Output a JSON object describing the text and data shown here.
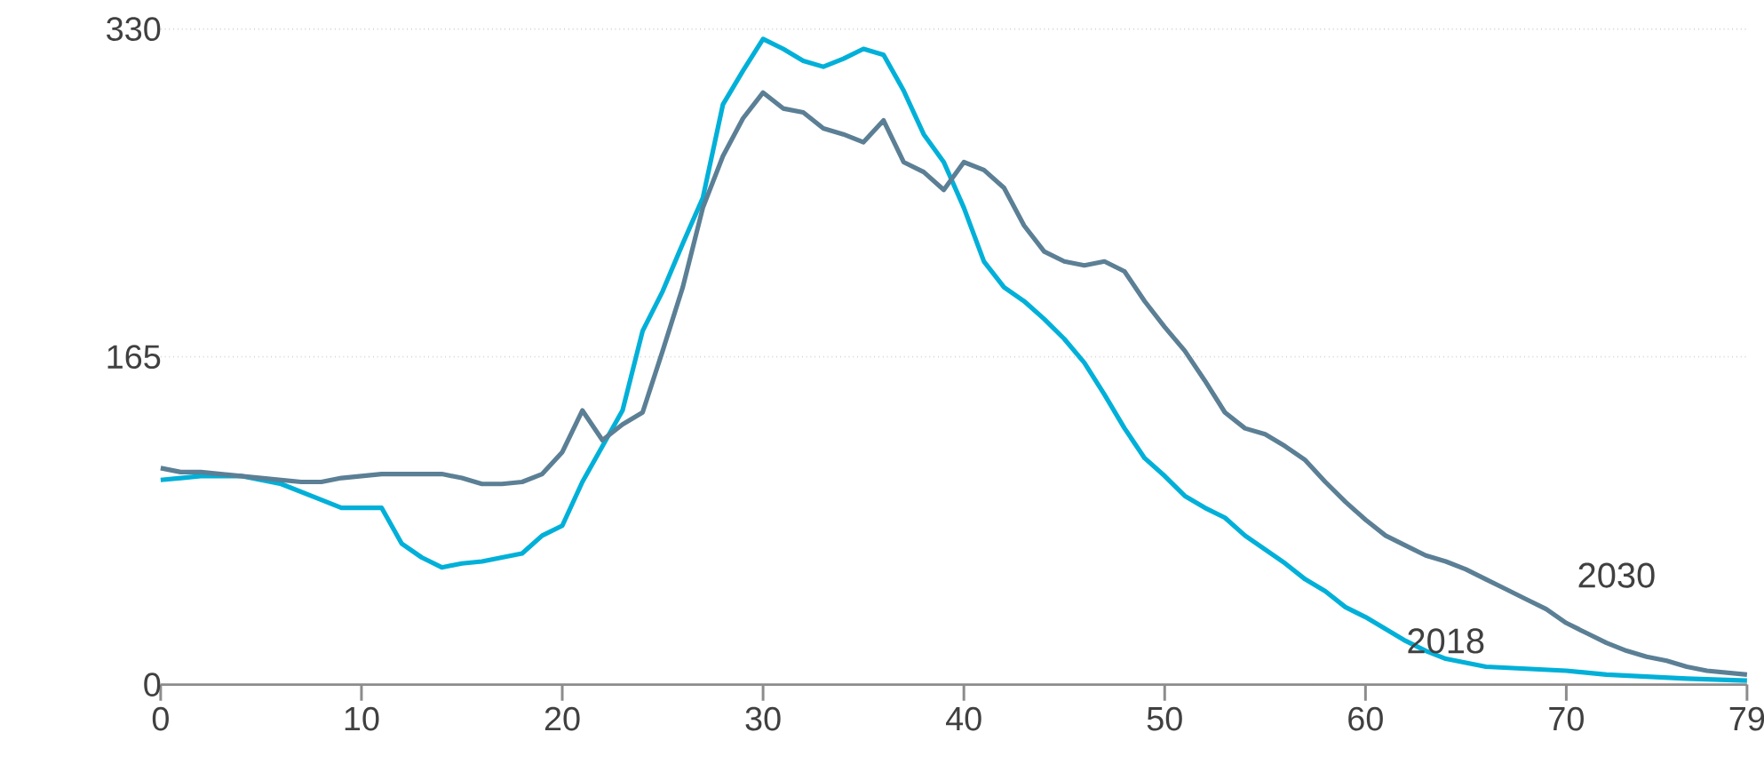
{
  "chart_data": {
    "type": "line",
    "x": [
      0,
      1,
      2,
      3,
      4,
      5,
      6,
      7,
      8,
      9,
      10,
      11,
      12,
      13,
      14,
      15,
      16,
      17,
      18,
      19,
      20,
      21,
      22,
      23,
      24,
      25,
      26,
      27,
      28,
      29,
      30,
      31,
      32,
      33,
      34,
      35,
      36,
      37,
      38,
      39,
      40,
      41,
      42,
      43,
      44,
      45,
      46,
      47,
      48,
      49,
      50,
      51,
      52,
      53,
      54,
      55,
      56,
      57,
      58,
      59,
      60,
      61,
      62,
      63,
      64,
      65,
      66,
      67,
      68,
      69,
      70,
      71,
      72,
      73,
      74,
      75,
      76,
      77,
      79
    ],
    "series": [
      {
        "name": "2018",
        "color": "#00b0d8",
        "x": [
          0,
          1,
          2,
          3,
          4,
          5,
          6,
          7,
          8,
          9,
          10,
          11,
          12,
          13,
          14,
          15,
          16,
          17,
          18,
          19,
          20,
          21,
          22,
          23,
          24,
          25,
          26,
          27,
          28,
          29,
          30,
          31,
          32,
          33,
          34,
          35,
          36,
          37,
          38,
          39,
          40,
          41,
          42,
          43,
          44,
          45,
          46,
          47,
          48,
          49,
          50,
          51,
          52,
          53,
          54,
          55,
          56,
          57,
          58,
          59,
          60,
          61,
          62,
          63,
          64,
          65,
          66,
          68,
          70,
          72,
          74,
          76,
          79
        ],
        "values": [
          103,
          104,
          105,
          105,
          105,
          103,
          101,
          97,
          93,
          89,
          89,
          89,
          71,
          64,
          59,
          61,
          62,
          64,
          66,
          75,
          80,
          102,
          120,
          138,
          178,
          198,
          222,
          245,
          292,
          309,
          325,
          320,
          314,
          311,
          315,
          320,
          317,
          299,
          277,
          263,
          240,
          213,
          200,
          193,
          184,
          174,
          162,
          146,
          129,
          114,
          105,
          95,
          89,
          84,
          75,
          68,
          61,
          53,
          47,
          39,
          34,
          28,
          22,
          17,
          13,
          11,
          9,
          8,
          7,
          5,
          4,
          3,
          2
        ]
      },
      {
        "name": "2030",
        "color": "#5b7f95",
        "values": [
          109,
          107,
          107,
          106,
          105,
          104,
          103,
          102,
          102,
          104,
          105,
          106,
          106,
          106,
          106,
          104,
          101,
          101,
          102,
          106,
          117,
          138,
          123,
          131,
          137,
          168,
          200,
          240,
          266,
          285,
          298,
          290,
          288,
          280,
          277,
          273,
          284,
          263,
          258,
          249,
          263,
          259,
          250,
          231,
          218,
          213,
          211,
          213,
          208,
          193,
          180,
          168,
          153,
          137,
          129,
          126,
          120,
          113,
          102,
          92,
          83,
          75,
          70,
          65,
          62,
          58,
          53,
          48,
          43,
          38,
          31,
          26,
          21,
          17,
          14,
          12,
          9,
          7,
          5
        ]
      }
    ],
    "xlim": [
      0,
      79
    ],
    "ylim": [
      0,
      330
    ],
    "xticks": [
      0,
      10,
      20,
      30,
      40,
      50,
      60,
      70,
      79
    ],
    "yticks": [
      0,
      165,
      330
    ],
    "grid": "y",
    "legend": false,
    "marker": "none",
    "line_style": "solid"
  }
}
